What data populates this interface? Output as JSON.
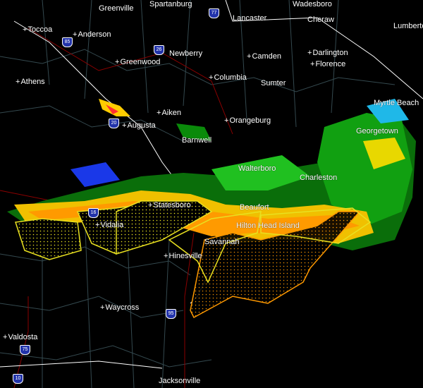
{
  "cities": [
    {
      "name": "Greenville",
      "id": "greenville"
    },
    {
      "name": "Spartanburg",
      "id": "spartanburg"
    },
    {
      "name": "Wadesboro",
      "id": "wadesboro"
    },
    {
      "name": "Toccoa",
      "id": "toccoa"
    },
    {
      "name": "Anderson",
      "id": "anderson"
    },
    {
      "name": "Lancaster",
      "id": "lancaster"
    },
    {
      "name": "Cheraw",
      "id": "cheraw"
    },
    {
      "name": "Lumberton",
      "id": "lumberton"
    },
    {
      "name": "Newberry",
      "id": "newberry"
    },
    {
      "name": "Camden",
      "id": "camden"
    },
    {
      "name": "Darlington",
      "id": "darlington"
    },
    {
      "name": "Greenwood",
      "id": "greenwood"
    },
    {
      "name": "Florence",
      "id": "florence"
    },
    {
      "name": "Columbia",
      "id": "columbia"
    },
    {
      "name": "Athens",
      "id": "athens"
    },
    {
      "name": "Sumter",
      "id": "sumter"
    },
    {
      "name": "Myrtle Beach",
      "id": "myrtle-beach"
    },
    {
      "name": "Aiken",
      "id": "aiken"
    },
    {
      "name": "Augusta",
      "id": "augusta"
    },
    {
      "name": "Orangeburg",
      "id": "orangeburg"
    },
    {
      "name": "Georgetown",
      "id": "georgetown"
    },
    {
      "name": "Barnwell",
      "id": "barnwell"
    },
    {
      "name": "Walterboro",
      "id": "walterboro"
    },
    {
      "name": "Charleston",
      "id": "charleston"
    },
    {
      "name": "Statesboro",
      "id": "statesboro"
    },
    {
      "name": "Beaufort",
      "id": "beaufort"
    },
    {
      "name": "Vidalia",
      "id": "vidalia"
    },
    {
      "name": "Hilton Head Island",
      "id": "hilton-head-island"
    },
    {
      "name": "Savannah",
      "id": "savannah"
    },
    {
      "name": "Hinesville",
      "id": "hinesville"
    },
    {
      "name": "Waycross",
      "id": "waycross"
    },
    {
      "name": "Valdosta",
      "id": "valdosta"
    },
    {
      "name": "Jacksonville",
      "id": "jacksonville"
    }
  ],
  "interstates": [
    "85",
    "26",
    "77",
    "20",
    "16",
    "95",
    "75",
    "10"
  ],
  "colors": {
    "background": "#000000",
    "warning_severe": "#ffff00",
    "warning_marine": "#ff9900",
    "county_lines": "#34494f",
    "state_lines": "#ffffff",
    "highways": "#8b0000"
  }
}
